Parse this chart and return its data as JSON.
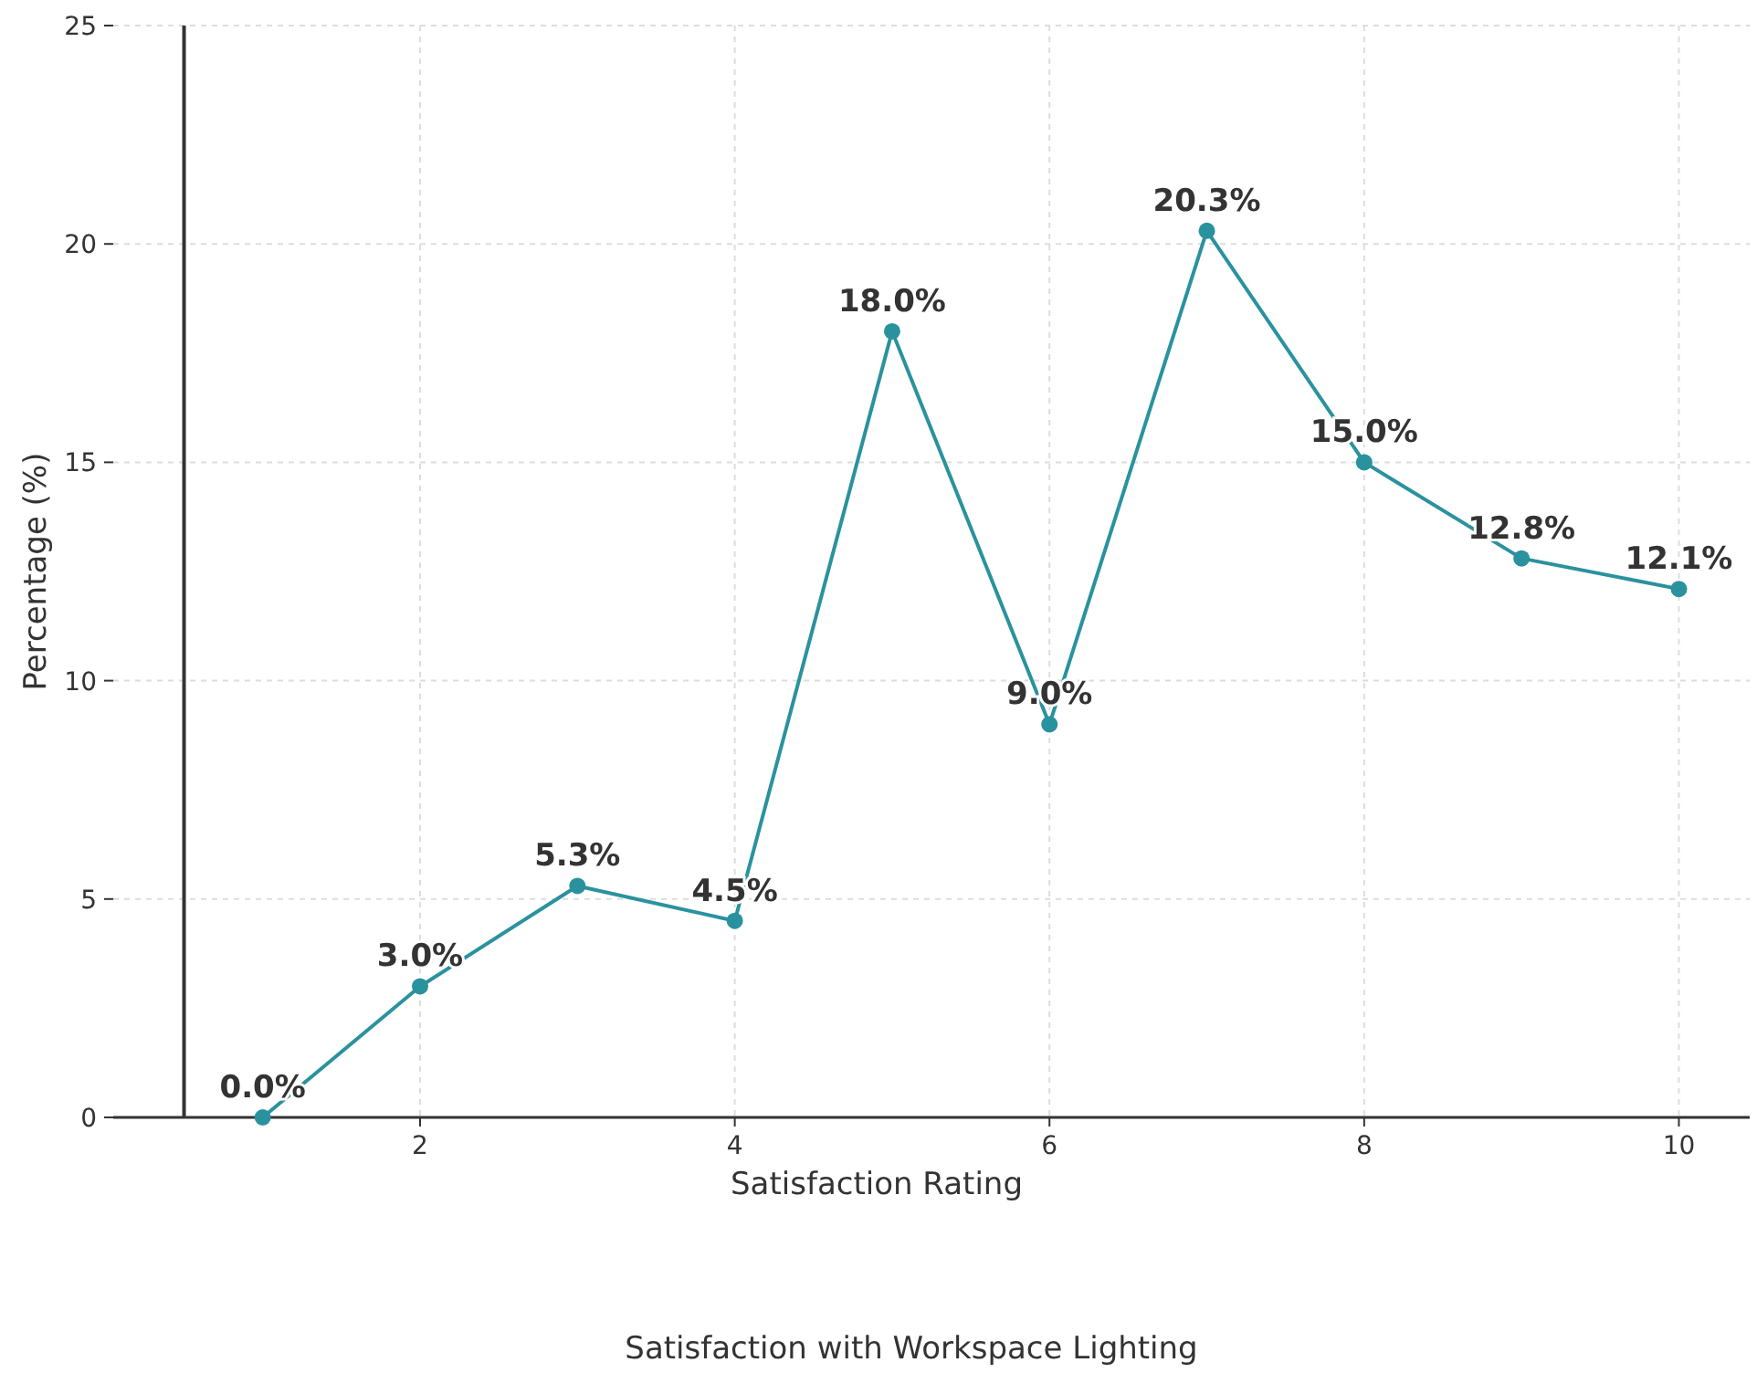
{
  "chart_data": {
    "type": "line",
    "title": "Satisfaction with Workspace Lighting",
    "xlabel": "Satisfaction Rating",
    "ylabel": "Percentage (%)",
    "x": [
      1,
      2,
      3,
      4,
      5,
      6,
      7,
      8,
      9,
      10
    ],
    "series": [
      {
        "color": "#2a929e",
        "values": [
          0.0,
          3.0,
          5.3,
          4.5,
          18.0,
          9.0,
          20.3,
          15.0,
          12.8,
          12.1
        ],
        "value_labels": [
          "0.0%",
          "3.0%",
          "5.3%",
          "4.5%",
          "18.0%",
          "9.0%",
          "20.3%",
          "15.0%",
          "12.8%",
          "12.1%"
        ]
      }
    ],
    "xlim": [
      0.05,
      10.45
    ],
    "xticks": [
      2,
      4,
      6,
      8,
      10
    ],
    "ylim": [
      0,
      25
    ],
    "yticks": [
      0,
      5,
      10,
      15,
      20,
      25
    ],
    "ref_lines": [
      {
        "axis": "x",
        "value": 0.5,
        "color": "#333333"
      }
    ],
    "grid": true,
    "marker": "circle",
    "line_style": "solid"
  }
}
